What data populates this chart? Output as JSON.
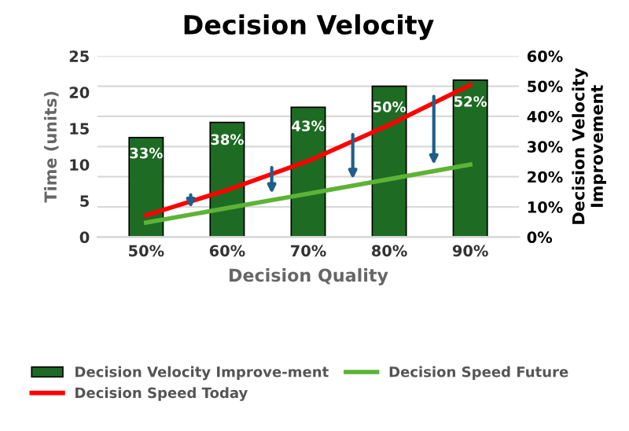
{
  "chart_data": {
    "type": "bar",
    "title": "Decision Velocity",
    "xlabel": "Decision Quality",
    "ylabel": "Time (units)",
    "y2label": "Decision Velocity\nImprovement",
    "categories": [
      "50%",
      "60%",
      "70%",
      "80%",
      "90%"
    ],
    "series": [
      {
        "name": "Decision Velocity Improve-ment",
        "axis": "y2",
        "color": "#1e6b24",
        "values": [
          33,
          38,
          43,
          50,
          52
        ],
        "value_labels": [
          "33%",
          "38%",
          "43%",
          "50%",
          "52%"
        ]
      },
      {
        "name": "Decision Speed Today",
        "type": "line",
        "color": "#ff0000",
        "values": [
          3,
          6.5,
          10.5,
          15.5,
          21
        ]
      },
      {
        "name": "Decision Speed Future",
        "type": "line",
        "color": "#5cb336",
        "values": [
          2,
          4,
          6,
          8,
          10
        ]
      }
    ],
    "ylim": [
      0,
      25
    ],
    "yticks": [
      0,
      5,
      10,
      15,
      20,
      25
    ],
    "y2lim": [
      0,
      60
    ],
    "y2ticks": [
      {
        "value": 0,
        "label": "0%"
      },
      {
        "value": 10,
        "label": "10%"
      },
      {
        "value": 20,
        "label": "20%"
      },
      {
        "value": 30,
        "label": "30%"
      },
      {
        "value": 40,
        "label": "40%"
      },
      {
        "value": 50,
        "label": "50%"
      },
      {
        "value": 60,
        "label": "60%"
      }
    ],
    "grid": "y",
    "legend": "bottom",
    "marker": "none"
  }
}
